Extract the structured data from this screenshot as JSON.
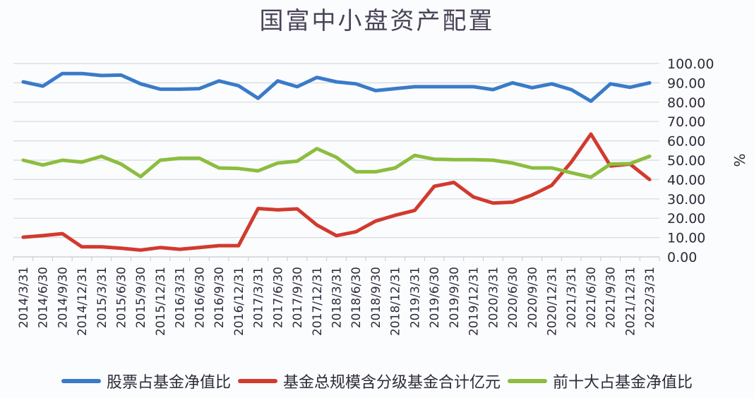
{
  "chart_data": {
    "type": "line",
    "title": "国富中小盘资产配置",
    "xlabel": "",
    "ylabel": "%",
    "ylim": [
      0,
      100
    ],
    "yticks": [
      "0.00",
      "10.00",
      "20.00",
      "30.00",
      "40.00",
      "50.00",
      "60.00",
      "70.00",
      "80.00",
      "90.00",
      "100.00"
    ],
    "grid": true,
    "legend_position": "bottom",
    "categories": [
      "2014/3/31",
      "2014/6/30",
      "2014/9/30",
      "2014/12/31",
      "2015/3/31",
      "2015/6/30",
      "2015/9/30",
      "2015/12/31",
      "2016/3/31",
      "2016/6/30",
      "2016/9/30",
      "2016/12/31",
      "2017/3/31",
      "2017/6/30",
      "2017/9/30",
      "2017/12/31",
      "2018/3/31",
      "2018/6/30",
      "2018/9/30",
      "2018/12/31",
      "2019/3/31",
      "2019/6/30",
      "2019/9/30",
      "2019/12/31",
      "2020/3/31",
      "2020/6/30",
      "2020/9/30",
      "2020/12/31",
      "2021/3/31",
      "2021/6/30",
      "2021/9/30",
      "2021/12/31",
      "2022/3/31"
    ],
    "series": [
      {
        "name": "股票占基金净值比",
        "color": "#3a7bc8",
        "values": [
          90.5,
          88.3,
          94.8,
          94.8,
          93.8,
          94.0,
          89.5,
          86.7,
          86.7,
          87.0,
          91.0,
          88.5,
          82.0,
          91.0,
          88.0,
          92.8,
          90.5,
          89.5,
          86.0,
          87.0,
          88.0,
          88.0,
          88.0,
          88.0,
          86.5,
          90.0,
          87.5,
          89.5,
          86.5,
          80.5,
          89.5,
          87.7,
          90.0
        ]
      },
      {
        "name": "基金总规模含分级基金合计亿元",
        "color": "#d23a2e",
        "values": [
          10.2,
          11.0,
          12.0,
          5.2,
          5.2,
          4.5,
          3.5,
          4.8,
          3.9,
          4.8,
          5.8,
          5.8,
          25.0,
          24.3,
          24.8,
          16.5,
          11.0,
          13.0,
          18.5,
          21.5,
          24.0,
          36.5,
          38.5,
          31.0,
          27.8,
          28.3,
          32.0,
          37.0,
          49.0,
          63.5,
          47.0,
          48.0,
          40.0
        ]
      },
      {
        "name": "前十大占基金净值比",
        "color": "#8cbd3f",
        "values": [
          50.0,
          47.5,
          50.0,
          49.0,
          52.0,
          48.0,
          41.5,
          50.0,
          51.0,
          51.0,
          46.0,
          45.7,
          44.5,
          48.5,
          49.5,
          56.0,
          51.5,
          44.0,
          44.0,
          46.0,
          52.5,
          50.5,
          50.3,
          50.3,
          50.0,
          48.5,
          46.0,
          46.0,
          43.5,
          41.2,
          48.0,
          48.2,
          52.0
        ]
      }
    ]
  },
  "page": {
    "title": "国富中小盘资产配置",
    "y_axis_unit": "%"
  },
  "legend": {
    "items": [
      {
        "label": "股票占基金净值比",
        "color": "#3a7bc8"
      },
      {
        "label": "基金总规模含分级基金合计亿元",
        "color": "#d23a2e"
      },
      {
        "label": "前十大占基金净值比",
        "color": "#8cbd3f"
      }
    ]
  }
}
